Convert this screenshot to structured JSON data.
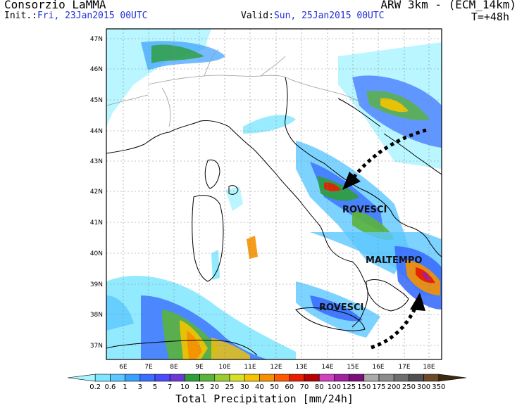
{
  "header": {
    "org": "Consorzio LaMMA",
    "model": "ARW 3km - (ECM_14km)",
    "init_label": "Init.:",
    "init_value": "Fri, 23Jan2015 00UTC",
    "valid_label": "Valid:",
    "valid_value": "Sun, 25Jan2015 00UTC",
    "step": "T=+48h"
  },
  "axes": {
    "lat_labels": [
      "47N",
      "46N",
      "45N",
      "44N",
      "43N",
      "42N",
      "41N",
      "40N",
      "39N",
      "38N",
      "37N"
    ],
    "lon_labels": [
      "6E",
      "7E",
      "8E",
      "9E",
      "10E",
      "11E",
      "12E",
      "13E",
      "14E",
      "15E",
      "16E",
      "17E",
      "18E"
    ]
  },
  "annotations": {
    "rovesci_north": "ROVESCI",
    "maltempo": "MALTEMPO",
    "rovesci_south": "ROVESCI"
  },
  "colorbar": {
    "title": "Total Precipitation [mm/24h]",
    "ticks": [
      "0.2",
      "0.6",
      "1",
      "3",
      "5",
      "7",
      "10",
      "15",
      "20",
      "25",
      "30",
      "40",
      "50",
      "60",
      "70",
      "80",
      "100",
      "125",
      "150",
      "175",
      "200",
      "250",
      "300",
      "350"
    ],
    "colors": [
      "#a8f4ff",
      "#7fe6ff",
      "#5cc8ff",
      "#3aa0ff",
      "#3a6eff",
      "#4a4aff",
      "#6a3ad8",
      "#2e9e3a",
      "#5ab43a",
      "#9acd32",
      "#d7e028",
      "#f5c400",
      "#f59100",
      "#ff5a00",
      "#e81e00",
      "#b80000",
      "#d040c0",
      "#a020a0",
      "#7a0f7a",
      "#aaaaaa",
      "#8c8c8c",
      "#6e6e6e",
      "#505050",
      "#6a4a2a",
      "#3c2a10"
    ]
  }
}
